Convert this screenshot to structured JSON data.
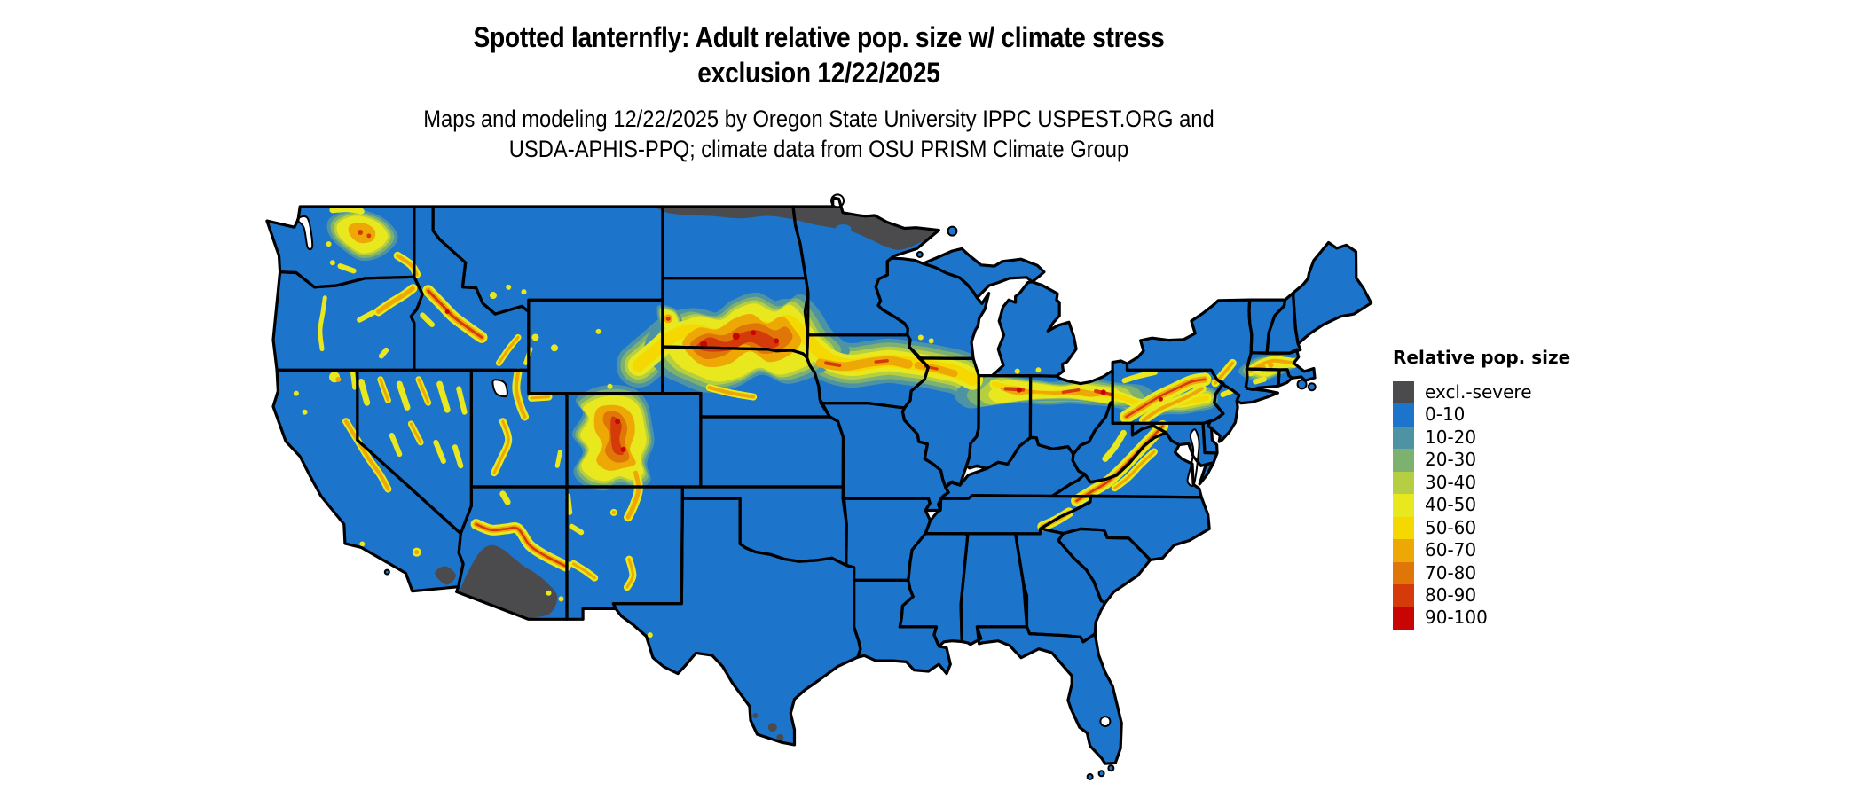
{
  "figure": {
    "title_line1": "Spotted lanternfly: Adult relative pop. size w/ climate stress",
    "title_line2": "exclusion 12/22/2025",
    "subtitle_line1": "Maps and modeling 12/22/2025 by Oregon State University IPPC USPEST.ORG and",
    "subtitle_line2": "USDA-APHIS-PPQ; climate data from OSU PRISM Climate Group"
  },
  "legend": {
    "title": "Relative pop. size",
    "items": [
      {
        "label": "excl.-severe",
        "color": "#4B4B4D"
      },
      {
        "label": "0-10",
        "color": "#1C74CB"
      },
      {
        "label": "10-20",
        "color": "#4E93A3"
      },
      {
        "label": "20-30",
        "color": "#7CB170"
      },
      {
        "label": "30-40",
        "color": "#B6CE41"
      },
      {
        "label": "40-50",
        "color": "#E9E71E"
      },
      {
        "label": "50-60",
        "color": "#F5D800"
      },
      {
        "label": "60-70",
        "color": "#EEA806"
      },
      {
        "label": "70-80",
        "color": "#E07608"
      },
      {
        "label": "80-90",
        "color": "#D53A0B"
      },
      {
        "label": "90-100",
        "color": "#C80502"
      }
    ]
  },
  "map": {
    "description": "Continental United States raster map of spotted lanternfly adult relative population size; mostly 0-10 (blue) with a hot corridor from South Dakota and Nebraska through Iowa, northern Illinois, Indiana, Ohio and Pennsylvania; excluded-severe (dark gray) areas in southern Arizona and along the northern Minnesota border",
    "land_color": "#1C74CB",
    "excluded_color": "#4B4B4D",
    "border_color": "#000000",
    "background_color": "#FFFFFF"
  }
}
